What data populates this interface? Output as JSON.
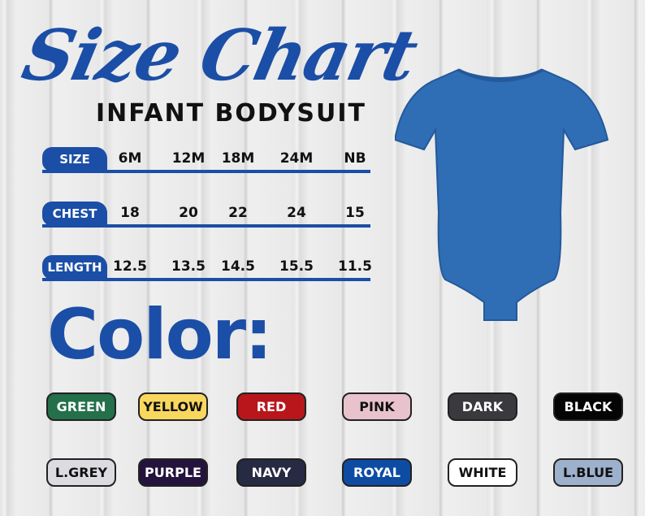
{
  "title": "Size Chart",
  "subtitle": "INFANT BODYSUIT",
  "table": {
    "rows": [
      {
        "label": "SIZE",
        "values": [
          "6M",
          "12M",
          "18M",
          "24M",
          "NB"
        ]
      },
      {
        "label": "CHEST",
        "values": [
          "18",
          "20",
          "22",
          "24",
          "15"
        ]
      },
      {
        "label": "LENGTH",
        "values": [
          "12.5",
          "13.5",
          "14.5",
          "15.5",
          "11.5"
        ]
      }
    ]
  },
  "color_heading": "Color:",
  "accent_color": "#1b4ea6",
  "product_color": "#2f6db5",
  "swatches": [
    {
      "label": "GREEN",
      "bg": "#23704a",
      "fg": "#ffffff"
    },
    {
      "label": "YELLOW",
      "bg": "#f9d75e",
      "fg": "#111111"
    },
    {
      "label": "RED",
      "bg": "#b8161b",
      "fg": "#ffffff"
    },
    {
      "label": "PINK",
      "bg": "#e8c2cd",
      "fg": "#111111"
    },
    {
      "label": "DARK",
      "bg": "#3a3a3e",
      "fg": "#ffffff"
    },
    {
      "label": "BLACK",
      "bg": "#050505",
      "fg": "#ffffff"
    },
    {
      "label": "L.GREY",
      "bg": "#dcdce0",
      "fg": "#111111"
    },
    {
      "label": "PURPLE",
      "bg": "#24133c",
      "fg": "#ffffff"
    },
    {
      "label": "NAVY",
      "bg": "#262a42",
      "fg": "#ffffff"
    },
    {
      "label": "ROYAL",
      "bg": "#0e4ca3",
      "fg": "#ffffff"
    },
    {
      "label": "WHITE",
      "bg": "#ffffff",
      "fg": "#111111"
    },
    {
      "label": "L.BLUE",
      "bg": "#9db0cc",
      "fg": "#111111"
    }
  ]
}
